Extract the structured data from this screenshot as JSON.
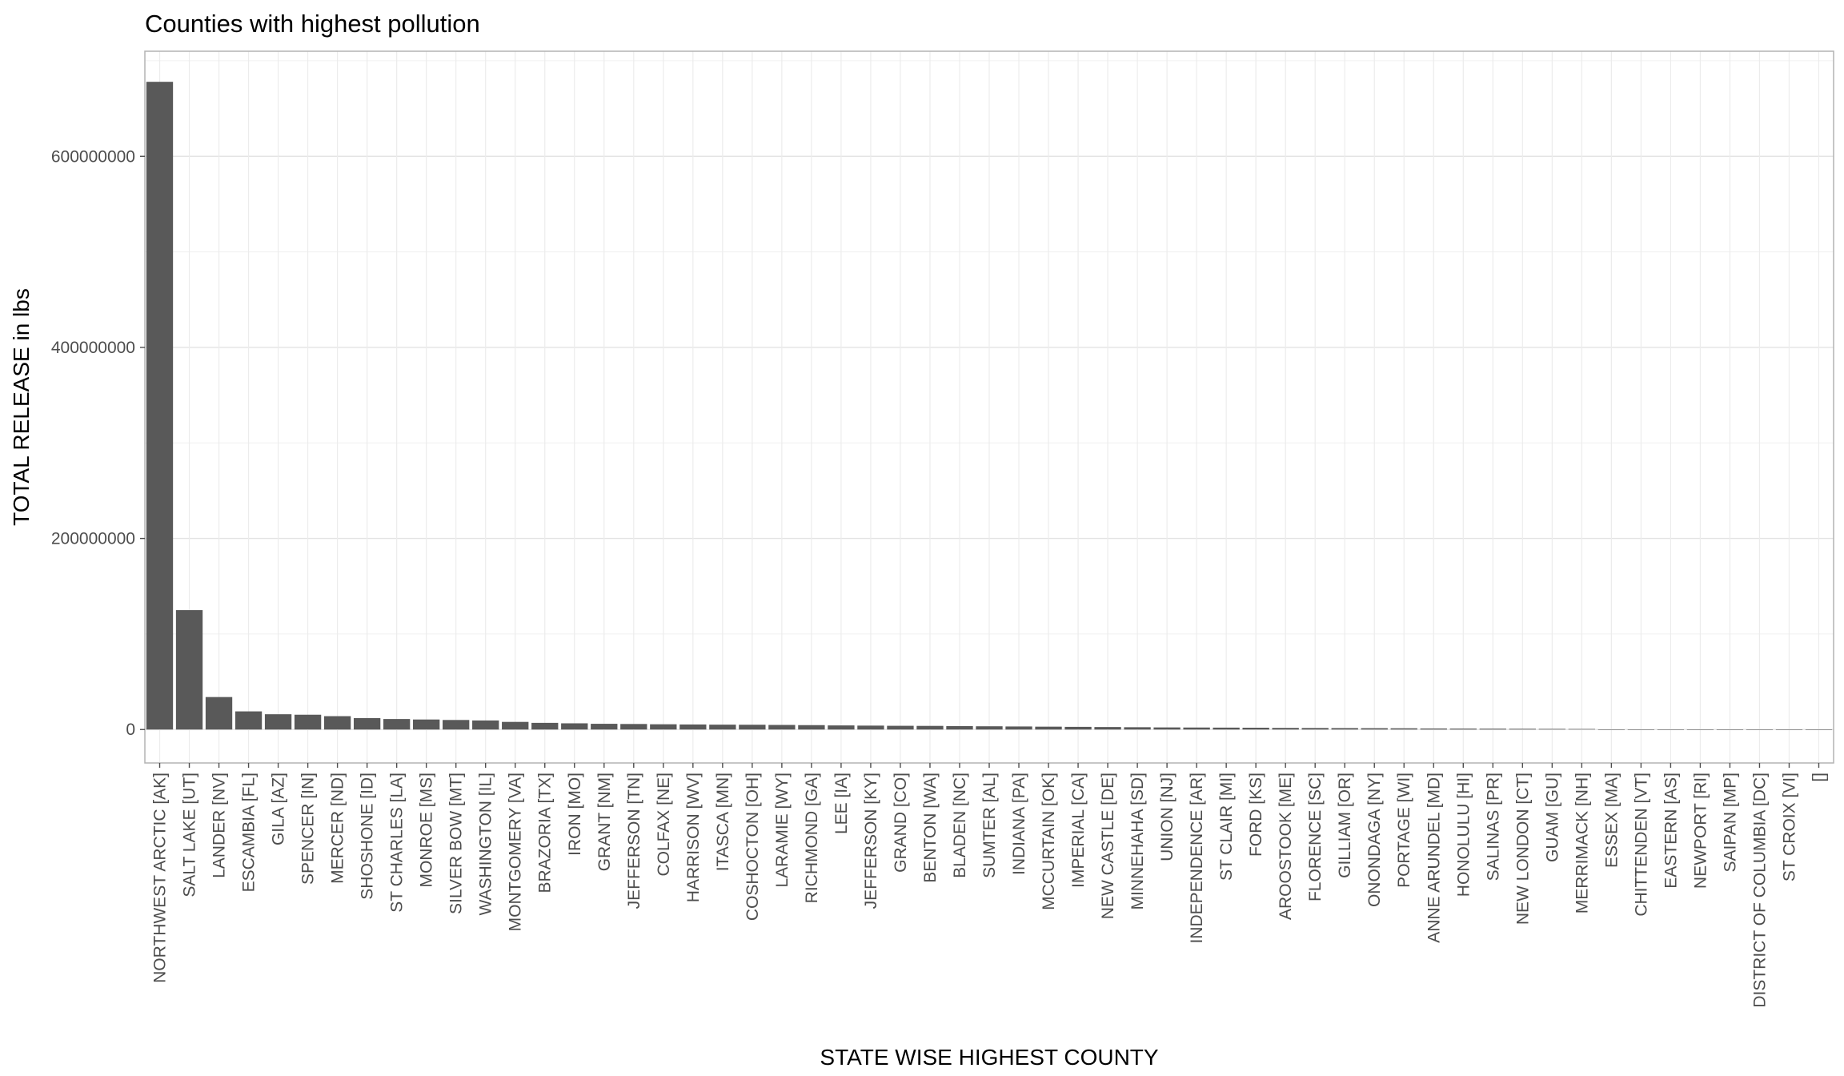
{
  "chart_data": {
    "type": "bar",
    "title": "Counties with highest pollution",
    "xlabel": "STATE WISE HIGHEST COUNTY",
    "ylabel": "TOTAL RELEASE in lbs",
    "ylim": [
      -35000000,
      710000000
    ],
    "yticks": [
      0,
      200000000,
      400000000,
      600000000
    ],
    "ytick_labels": [
      "0",
      "200000000",
      "400000000",
      "600000000"
    ],
    "grid": true,
    "legend": "none",
    "bar_color": "#595959",
    "categories": [
      "NORTHWEST ARCTIC [AK]",
      "SALT LAKE [UT]",
      "LANDER [NV]",
      "ESCAMBIA [FL]",
      "GILA [AZ]",
      "SPENCER [IN]",
      "MERCER [ND]",
      "SHOSHONE [ID]",
      "ST CHARLES [LA]",
      "MONROE [MS]",
      "SILVER BOW [MT]",
      "WASHINGTON [IL]",
      "MONTGOMERY [VA]",
      "BRAZORIA [TX]",
      "IRON [MO]",
      "GRANT [NM]",
      "JEFFERSON [TN]",
      "COLFAX [NE]",
      "HARRISON [WV]",
      "ITASCA [MN]",
      "COSHOCTON [OH]",
      "LARAMIE [WY]",
      "RICHMOND [GA]",
      "LEE [IA]",
      "JEFFERSON [KY]",
      "GRAND [CO]",
      "BENTON [WA]",
      "BLADEN [NC]",
      "SUMTER [AL]",
      "INDIANA [PA]",
      "MCCURTAIN [OK]",
      "IMPERIAL [CA]",
      "NEW CASTLE [DE]",
      "MINNEHAHA [SD]",
      "UNION [NJ]",
      "INDEPENDENCE [AR]",
      "ST CLAIR [MI]",
      "FORD [KS]",
      "AROOSTOOK [ME]",
      "FLORENCE [SC]",
      "GILLIAM [OR]",
      "ONONDAGA [NY]",
      "PORTAGE [WI]",
      "ANNE ARUNDEL [MD]",
      "HONOLULU [HI]",
      "SALINAS [PR]",
      "NEW LONDON [CT]",
      "GUAM [GU]",
      "MERRIMACK [NH]",
      "ESSEX [MA]",
      "CHITTENDEN [VT]",
      "EASTERN [AS]",
      "NEWPORT [RI]",
      "SAIPAN [MP]",
      "DISTRICT OF COLUMBIA [DC]",
      "ST CROIX [VI]",
      "[]"
    ],
    "values": [
      678000000,
      125000000,
      34000000,
      19000000,
      16000000,
      15500000,
      14000000,
      12000000,
      11000000,
      10500000,
      10000000,
      9500000,
      8000000,
      7000000,
      6500000,
      6000000,
      5800000,
      5500000,
      5300000,
      5100000,
      5000000,
      4800000,
      4600000,
      4300000,
      4100000,
      3900000,
      3800000,
      3600000,
      3400000,
      3200000,
      3000000,
      2800000,
      2600000,
      2400000,
      2200000,
      2100000,
      2000000,
      1900000,
      1700000,
      1600000,
      1500000,
      1400000,
      1300000,
      1100000,
      1000000,
      900000,
      800000,
      700000,
      600000,
      150000,
      100000,
      50000,
      40000,
      30000,
      20000,
      10000,
      0
    ]
  }
}
